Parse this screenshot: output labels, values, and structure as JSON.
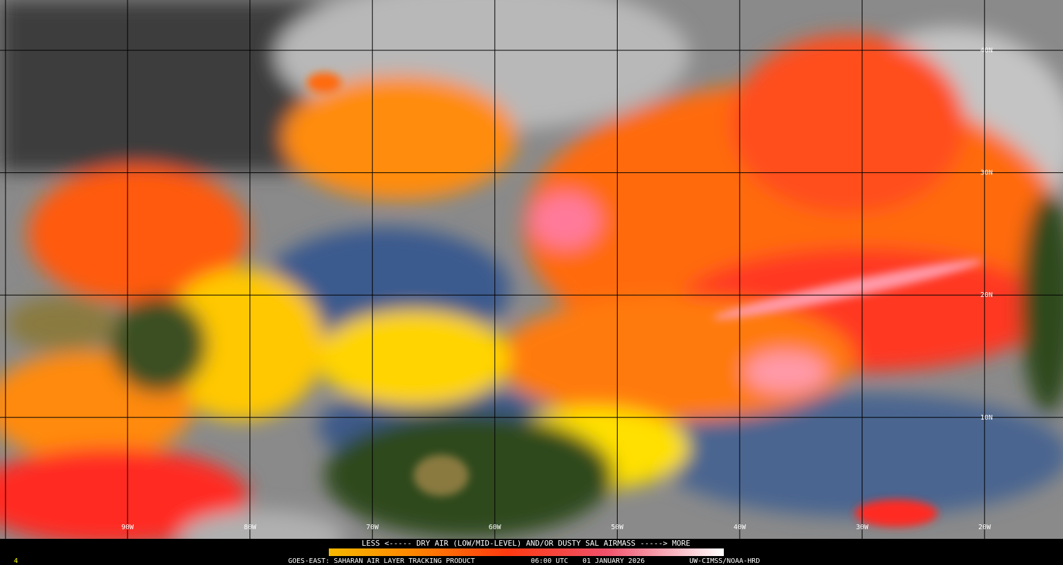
{
  "map": {
    "lon_labels": [
      "90W",
      "80W",
      "70W",
      "60W",
      "50W",
      "40W",
      "30W",
      "20W"
    ],
    "lat_labels": [
      "40N",
      "30N",
      "20N",
      "10N"
    ]
  },
  "legend": {
    "caption": "LESS <----- DRY AIR (LOW/MID-LEVEL) AND/OR DUSTY SAL AIRMASS -----> MORE",
    "product": "GOES-EAST: SAHARAN AIR LAYER TRACKING PRODUCT",
    "time": "06:00 UTC",
    "date": "01 JANUARY 2026",
    "credit": "UW-CIMSS/NOAA-HRD"
  },
  "frame": {
    "index": "4"
  }
}
